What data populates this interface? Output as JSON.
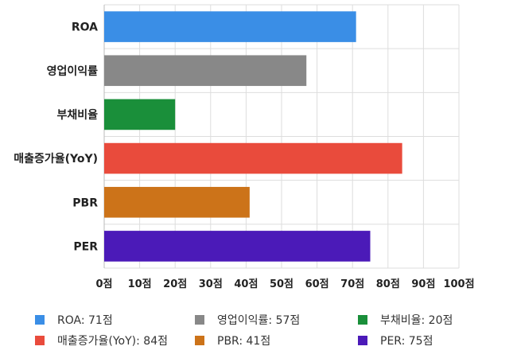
{
  "chart_data": {
    "type": "bar",
    "orientation": "horizontal",
    "categories": [
      "ROA",
      "영업이익률",
      "부채비율",
      "매출증가율(YoY)",
      "PBR",
      "PER"
    ],
    "values": [
      71,
      57,
      20,
      84,
      41,
      75
    ],
    "colors": [
      "#3a8ee6",
      "#888888",
      "#1a8f3a",
      "#e94b3c",
      "#cc7319",
      "#4b1ab8"
    ],
    "xlim": [
      0,
      100
    ],
    "x_ticks": [
      "0점",
      "10점",
      "20점",
      "30점",
      "40점",
      "50점",
      "60점",
      "70점",
      "80점",
      "90점",
      "100점"
    ],
    "grid": true,
    "legend_position": "bottom",
    "legend": [
      {
        "label": "ROA: 71점",
        "color": "#3a8ee6"
      },
      {
        "label": "영업이익률: 57점",
        "color": "#888888"
      },
      {
        "label": "부채비율: 20점",
        "color": "#1a8f3a"
      },
      {
        "label": "매출증가율(YoY): 84점",
        "color": "#e94b3c"
      },
      {
        "label": "PBR: 41점",
        "color": "#cc7319"
      },
      {
        "label": "PER: 75점",
        "color": "#4b1ab8"
      }
    ]
  }
}
